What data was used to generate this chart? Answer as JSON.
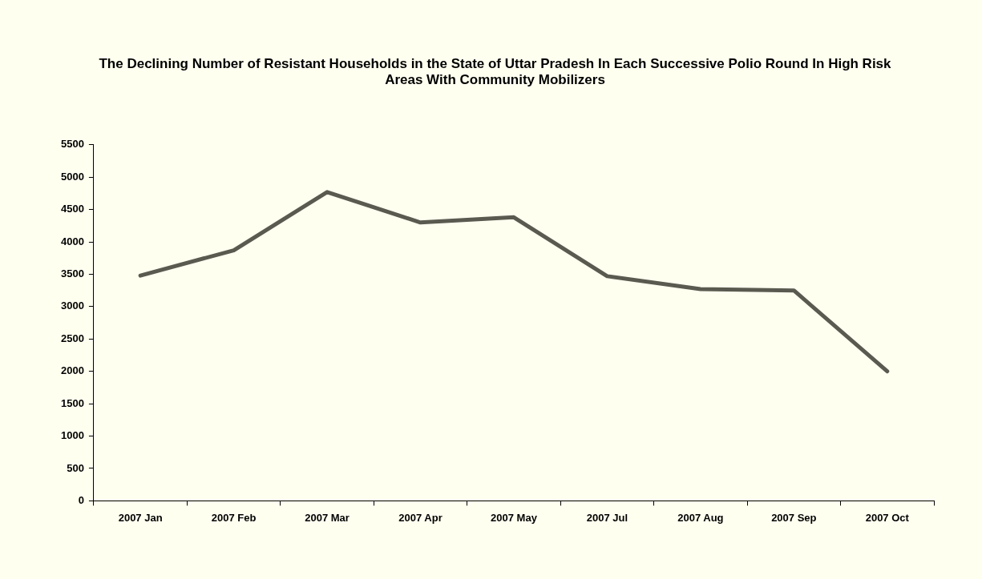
{
  "chart_data": {
    "type": "line",
    "title": "The Declining Number of Resistant Households in the State of Uttar Pradesh In Each Successive Polio Round In High Risk Areas With Community Mobilizers",
    "categories": [
      "2007 Jan",
      "2007 Feb",
      "2007 Mar",
      "2007 Apr",
      "2007 May",
      "2007 Jul",
      "2007 Aug",
      "2007 Sep",
      "2007 Oct"
    ],
    "series": [
      {
        "color": "#5a5a50",
        "values": [
          3480,
          3870,
          4770,
          4300,
          4380,
          3470,
          3270,
          3250,
          2000
        ]
      }
    ],
    "ylim": [
      0,
      5500
    ],
    "yticks": [
      0,
      500,
      1000,
      1500,
      2000,
      2500,
      3000,
      3500,
      4000,
      4500,
      5000,
      5500
    ],
    "legend": false,
    "marker": "none",
    "line_style": "solid"
  }
}
